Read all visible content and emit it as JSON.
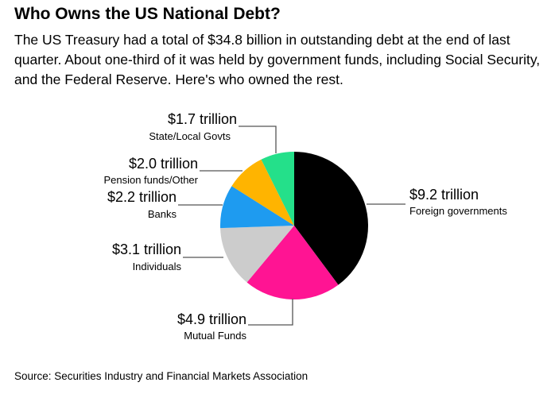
{
  "title": "Who Owns the US National Debt?",
  "subtitle": "The US Treasury had a total of $34.8 billion in outstanding debt at the end of last quarter. About one-third of it was held by government funds, including Social Security, and the Federal Reserve. Here's who owned the rest.",
  "source": "Source: Securities Industry and Financial Markets Association",
  "colors": {
    "foreign": "#000000",
    "mutual": "#ff1493",
    "individuals": "#cccccc",
    "banks": "#1e9bf0",
    "pension": "#ffb400",
    "state": "#24e08a"
  },
  "chart_data": {
    "type": "pie",
    "slices": [
      {
        "category": "Foreign governments",
        "value": 9.2,
        "label": "$9.2 trillion",
        "color": "#000000"
      },
      {
        "category": "Mutual Funds",
        "value": 4.9,
        "label": "$4.9 trillion",
        "color": "#ff1493"
      },
      {
        "category": "Individuals",
        "value": 3.1,
        "label": "$3.1 trillion",
        "color": "#cccccc"
      },
      {
        "category": "Banks",
        "value": 2.2,
        "label": "$2.2 trillion",
        "color": "#1e9bf0"
      },
      {
        "category": "Pension funds/Other",
        "value": 2.0,
        "label": "$2.0 trillion",
        "color": "#ffb400"
      },
      {
        "category": "State/Local Govts",
        "value": 1.7,
        "label": "$1.7 trillion",
        "color": "#24e08a"
      }
    ],
    "start": "12 o'clock",
    "direction": "clockwise"
  }
}
